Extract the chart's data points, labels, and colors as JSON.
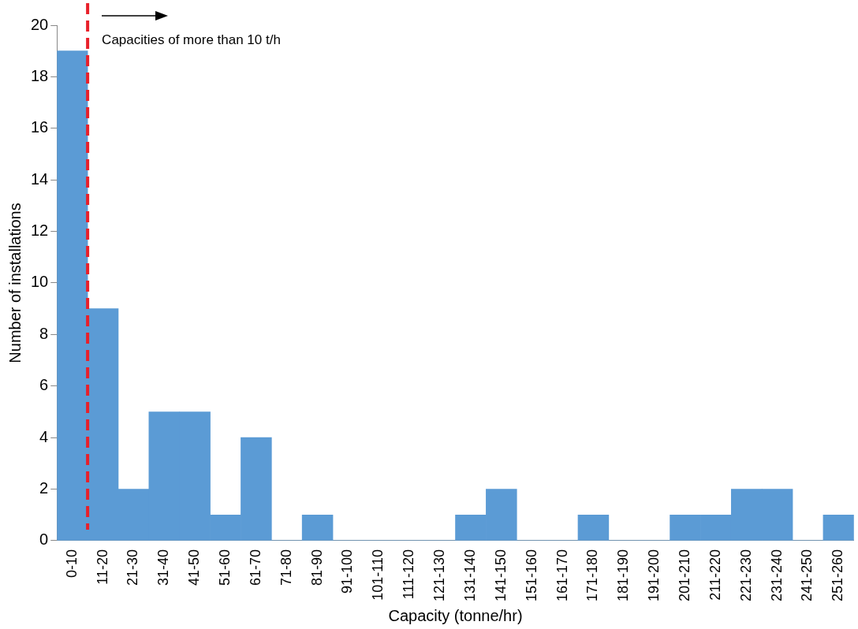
{
  "chart_data": {
    "type": "bar",
    "categories": [
      "0-10",
      "11-20",
      "21-30",
      "31-40",
      "41-50",
      "51-60",
      "61-70",
      "71-80",
      "81-90",
      "91-100",
      "101-110",
      "111-120",
      "121-130",
      "131-140",
      "141-150",
      "151-160",
      "161-170",
      "171-180",
      "181-190",
      "191-200",
      "201-210",
      "211-220",
      "221-230",
      "231-240",
      "241-250",
      "251-260"
    ],
    "values": [
      19,
      9,
      2,
      5,
      5,
      1,
      4,
      0,
      1,
      0,
      0,
      0,
      0,
      1,
      2,
      0,
      0,
      1,
      0,
      0,
      1,
      1,
      2,
      2,
      0,
      1
    ],
    "color": "#5b9bd5",
    "xlabel": "Capacity (tonne/hr)",
    "ylabel": "Number of installations",
    "ylim": [
      0,
      20
    ],
    "yticks": [
      0,
      2,
      4,
      6,
      8,
      10,
      12,
      14,
      16,
      18,
      20
    ],
    "grid": false,
    "legend": false,
    "ref_lines": [
      {
        "axis": "x",
        "value": "0-10",
        "color": "#e8202a",
        "line_style": "dashed"
      }
    ],
    "annotations": [
      "Capacities of more than 10 t/h"
    ]
  }
}
